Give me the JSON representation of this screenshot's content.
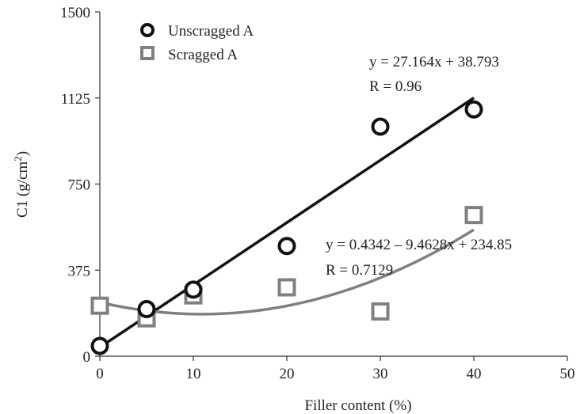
{
  "chart_data": {
    "type": "scatter",
    "title": "",
    "xlabel": "Filler content (%)",
    "ylabel": {
      "main": "C1 (g/cm",
      "sup": "2",
      "close": ")"
    },
    "xlim": [
      0,
      50
    ],
    "ylim": [
      0,
      1500
    ],
    "x_ticks": [
      "0",
      "10",
      "20",
      "30",
      "40",
      "50"
    ],
    "y_ticks": [
      "0",
      "375",
      "750",
      "1125",
      "1500"
    ],
    "grid": false,
    "legend_placement": "top-left",
    "series": [
      {
        "name": "Unscragged A",
        "marker": "circle",
        "color": "#111111",
        "points": [
          {
            "x": 0,
            "y": 45
          },
          {
            "x": 5,
            "y": 205
          },
          {
            "x": 10,
            "y": 290
          },
          {
            "x": 20,
            "y": 480
          },
          {
            "x": 30,
            "y": 1000
          },
          {
            "x": 40,
            "y": 1075
          }
        ],
        "trend": {
          "kind": "linear",
          "slope": 27.164,
          "intercept": 38.793,
          "x_range": [
            0,
            40
          ],
          "equation": "y = 27.164x + 38.793",
          "r_label": "R = 0.96"
        }
      },
      {
        "name": "Scragged A",
        "marker": "square",
        "color": "#808080",
        "points": [
          {
            "x": 0,
            "y": 220
          },
          {
            "x": 5,
            "y": 165
          },
          {
            "x": 10,
            "y": 265
          },
          {
            "x": 20,
            "y": 300
          },
          {
            "x": 30,
            "y": 195
          },
          {
            "x": 40,
            "y": 615
          }
        ],
        "trend": {
          "kind": "polynomial",
          "coefficients": [
            0.4342,
            -9.4628,
            234.85
          ],
          "x_range": [
            0,
            40
          ],
          "equation": "y = 0.4342 – 9.4628x + 234.85",
          "r_label": "R = 0.7129"
        }
      }
    ]
  }
}
